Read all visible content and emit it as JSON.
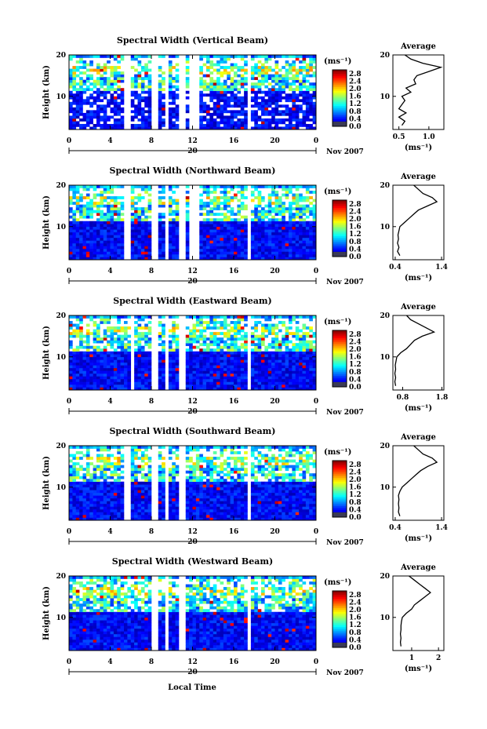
{
  "figure": {
    "bottom_xlabel": "Local Time",
    "ylabel": "Height (km)",
    "date_label": "Nov 2007",
    "date_day": "20",
    "colorbar_unit": "(ms⁻¹)",
    "colorbar_ticks": [
      "2.8",
      "2.4",
      "2.0",
      "1.6",
      "1.2",
      "0.8",
      "0.4",
      "0.0"
    ],
    "profile_title": "Average",
    "profile_xlabel": "(ms⁻¹)"
  },
  "chart_data": [
    {
      "type": "heatmap",
      "title": "Spectral Width (Vertical Beam)",
      "xlabel": "Local Time",
      "ylabel": "Height (km)",
      "xlim": [
        0,
        24
      ],
      "ylim": [
        2,
        20
      ],
      "xticks": [
        "0",
        "4",
        "8",
        "12",
        "16",
        "20",
        "0"
      ],
      "yticks": [
        "10",
        "20"
      ],
      "colorbar": {
        "label": "(ms⁻¹)",
        "range": [
          0.0,
          3.0
        ],
        "ticks": [
          "2.8",
          "2.4",
          "2.0",
          "1.6",
          "1.2",
          "0.8",
          "0.4",
          "0.0"
        ]
      },
      "data_gaps_local_time": [
        [
          5.4,
          5.9
        ],
        [
          8.0,
          8.6
        ],
        [
          9.4,
          9.8
        ],
        [
          10.8,
          11.2
        ],
        [
          11.8,
          12.6
        ],
        [
          17.2,
          17.6
        ]
      ],
      "profile": {
        "title": "Average",
        "xlabel": "(ms⁻¹)",
        "xlim": [
          0.4,
          1.25
        ],
        "xticks": [
          "0.5",
          "1.0"
        ],
        "ylim": [
          2,
          20
        ],
        "yticks": [
          "10",
          "20"
        ],
        "heights": [
          3,
          4,
          5,
          6,
          7,
          8,
          9,
          10,
          11,
          12,
          13,
          14,
          15,
          16,
          17,
          18,
          19,
          20
        ],
        "values": [
          0.55,
          0.6,
          0.5,
          0.62,
          0.5,
          0.55,
          0.6,
          0.55,
          0.7,
          0.62,
          0.78,
          0.75,
          0.8,
          1.0,
          1.2,
          0.9,
          0.7,
          0.6
        ]
      }
    },
    {
      "type": "heatmap",
      "title": "Spectral Width (Northward Beam)",
      "xlabel": "Local Time",
      "ylabel": "Height (km)",
      "xlim": [
        0,
        24
      ],
      "ylim": [
        2,
        20
      ],
      "xticks": [
        "0",
        "4",
        "8",
        "12",
        "16",
        "20",
        "0"
      ],
      "yticks": [
        "10",
        "20"
      ],
      "colorbar": {
        "label": "(ms⁻¹)",
        "range": [
          0.0,
          3.0
        ],
        "ticks": [
          "2.8",
          "2.4",
          "2.0",
          "1.6",
          "1.2",
          "0.8",
          "0.4",
          "0.0"
        ]
      },
      "data_gaps_local_time": [
        [
          5.4,
          5.9
        ],
        [
          8.0,
          8.6
        ],
        [
          9.4,
          9.8
        ],
        [
          10.8,
          11.2
        ],
        [
          11.8,
          12.6
        ],
        [
          17.2,
          17.6
        ]
      ],
      "profile": {
        "title": "Average",
        "xlabel": "(ms⁻¹)",
        "xlim": [
          0.35,
          1.45
        ],
        "xticks": [
          "0.4",
          "1.4"
        ],
        "ylim": [
          2,
          20
        ],
        "yticks": [
          "10",
          "20"
        ],
        "heights": [
          3,
          4,
          5,
          6,
          7,
          8,
          9,
          10,
          11,
          12,
          13,
          14,
          15,
          16,
          17,
          18,
          19,
          20
        ],
        "values": [
          0.5,
          0.45,
          0.48,
          0.45,
          0.47,
          0.46,
          0.48,
          0.5,
          0.6,
          0.7,
          0.8,
          0.9,
          1.1,
          1.3,
          1.2,
          1.0,
          0.9,
          0.8
        ]
      }
    },
    {
      "type": "heatmap",
      "title": "Spectral Width (Eastward Beam)",
      "xlabel": "Local Time",
      "ylabel": "Height (km)",
      "xlim": [
        0,
        24
      ],
      "ylim": [
        2,
        20
      ],
      "xticks": [
        "0",
        "4",
        "8",
        "12",
        "16",
        "20",
        "0"
      ],
      "yticks": [
        "10",
        "20"
      ],
      "colorbar": {
        "label": "(ms⁻¹)",
        "range": [
          0.0,
          3.0
        ],
        "ticks": [
          "2.8",
          "2.4",
          "2.0",
          "1.6",
          "1.2",
          "0.8",
          "0.4",
          "0.0"
        ]
      },
      "data_gaps_local_time": [
        [
          5.9,
          6.3
        ],
        [
          8.0,
          8.6
        ],
        [
          9.4,
          9.8
        ],
        [
          10.8,
          11.2
        ],
        [
          17.2,
          17.6
        ]
      ],
      "profile": {
        "title": "Average",
        "xlabel": "(ms⁻¹)",
        "xlim": [
          0.55,
          1.85
        ],
        "xticks": [
          "0.8",
          "1.8"
        ],
        "ylim": [
          2,
          20
        ],
        "yticks": [
          "10",
          "20"
        ],
        "heights": [
          3,
          4,
          5,
          6,
          7,
          8,
          9,
          10,
          11,
          12,
          13,
          14,
          15,
          16,
          17,
          18,
          19,
          20
        ],
        "values": [
          0.62,
          0.6,
          0.62,
          0.6,
          0.62,
          0.61,
          0.63,
          0.65,
          0.75,
          0.9,
          1.0,
          1.1,
          1.3,
          1.6,
          1.4,
          1.2,
          1.0,
          0.9
        ]
      }
    },
    {
      "type": "heatmap",
      "title": "Spectral Width (Southward Beam)",
      "xlabel": "Local Time",
      "ylabel": "Height (km)",
      "xlim": [
        0,
        24
      ],
      "ylim": [
        2,
        20
      ],
      "xticks": [
        "0",
        "4",
        "8",
        "12",
        "16",
        "20",
        "0"
      ],
      "yticks": [
        "10",
        "20"
      ],
      "colorbar": {
        "label": "(ms⁻¹)",
        "range": [
          0.0,
          3.0
        ],
        "ticks": [
          "2.8",
          "2.4",
          "2.0",
          "1.6",
          "1.2",
          "0.8",
          "0.4",
          "0.0"
        ]
      },
      "data_gaps_local_time": [
        [
          5.4,
          5.9
        ],
        [
          8.0,
          8.6
        ],
        [
          9.4,
          9.8
        ],
        [
          10.8,
          11.2
        ],
        [
          17.2,
          17.6
        ]
      ],
      "profile": {
        "title": "Average",
        "xlabel": "(ms⁻¹)",
        "xlim": [
          0.35,
          1.45
        ],
        "xticks": [
          "0.4",
          "1.4"
        ],
        "ylim": [
          2,
          20
        ],
        "yticks": [
          "10",
          "20"
        ],
        "heights": [
          3,
          4,
          5,
          6,
          7,
          8,
          9,
          10,
          11,
          12,
          13,
          14,
          15,
          16,
          17,
          18,
          19,
          20
        ],
        "values": [
          0.5,
          0.47,
          0.48,
          0.47,
          0.48,
          0.47,
          0.5,
          0.55,
          0.65,
          0.75,
          0.85,
          0.95,
          1.1,
          1.3,
          1.2,
          1.0,
          0.9,
          0.8
        ]
      }
    },
    {
      "type": "heatmap",
      "title": "Spectral Width (Westward Beam)",
      "xlabel": "Local Time",
      "ylabel": "Height (km)",
      "xlim": [
        0,
        24
      ],
      "ylim": [
        2,
        20
      ],
      "xticks": [
        "0",
        "4",
        "8",
        "12",
        "16",
        "20",
        "0"
      ],
      "yticks": [
        "10",
        "20"
      ],
      "colorbar": {
        "label": "(ms⁻¹)",
        "range": [
          0.0,
          3.0
        ],
        "ticks": [
          "2.8",
          "2.4",
          "2.0",
          "1.6",
          "1.2",
          "0.8",
          "0.4",
          "0.0"
        ]
      },
      "data_gaps_local_time": [
        [
          8.0,
          8.6
        ],
        [
          9.4,
          9.8
        ],
        [
          10.8,
          11.2
        ],
        [
          17.2,
          17.6
        ]
      ],
      "profile": {
        "title": "Average",
        "xlabel": "(ms⁻¹)",
        "xlim": [
          0.3,
          2.2
        ],
        "xticks": [
          "1",
          "2"
        ],
        "ylim": [
          2,
          20
        ],
        "yticks": [
          "10",
          "20"
        ],
        "heights": [
          3,
          4,
          5,
          6,
          7,
          8,
          9,
          10,
          11,
          12,
          13,
          14,
          15,
          16,
          17,
          18,
          19,
          20
        ],
        "values": [
          0.6,
          0.58,
          0.6,
          0.58,
          0.6,
          0.6,
          0.62,
          0.65,
          0.8,
          1.0,
          1.1,
          1.3,
          1.5,
          1.7,
          1.5,
          1.3,
          1.1,
          0.9
        ]
      }
    }
  ]
}
